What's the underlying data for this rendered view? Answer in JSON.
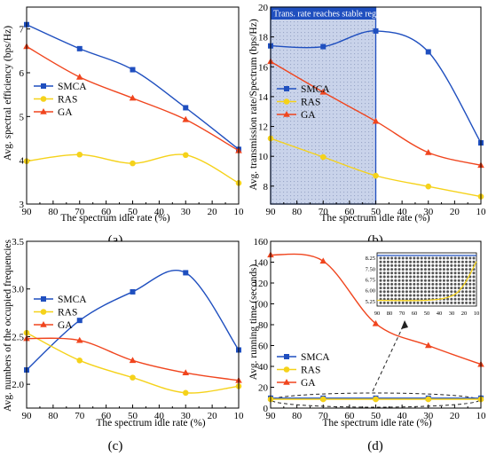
{
  "chart_data": [
    {
      "id": "a",
      "type": "line",
      "panel_label": "(a)",
      "xlabel": "The spectrum idle rate (%)",
      "ylabel": "Avg. spectral efficiency (bps/Hz)",
      "x": [
        90,
        70,
        50,
        30,
        10
      ],
      "xlim": [
        90,
        10
      ],
      "xticks": [
        90,
        80,
        70,
        60,
        50,
        40,
        30,
        20,
        10
      ],
      "ylim": [
        3,
        7.5
      ],
      "yticks": [
        3,
        4,
        5,
        6,
        7
      ],
      "legend_position": "right",
      "series": [
        {
          "name": "SMCA",
          "color": "#1f4fbf",
          "marker": "square",
          "values": [
            7.1,
            6.55,
            6.07,
            5.2,
            4.25
          ]
        },
        {
          "name": "RAS",
          "color": "#f5d21a",
          "marker": "circle",
          "values": [
            3.98,
            4.13,
            3.93,
            4.12,
            3.48
          ]
        },
        {
          "name": "GA",
          "color": "#f0451e",
          "marker": "triangle",
          "values": [
            6.6,
            5.9,
            5.42,
            4.93,
            4.22
          ]
        }
      ]
    },
    {
      "id": "b",
      "type": "line",
      "panel_label": "(b)",
      "xlabel": "The spectrum idle rate (%)",
      "ylabel": "Avg. transmission rate/Spectrum (bps/Hz)",
      "x": [
        90,
        70,
        50,
        30,
        10
      ],
      "xlim": [
        90,
        10
      ],
      "xticks": [
        90,
        80,
        70,
        60,
        50,
        40,
        30,
        20,
        10
      ],
      "ylim": [
        6.8,
        20
      ],
      "yticks": [
        8,
        10,
        12,
        14,
        16,
        18,
        20
      ],
      "legend_position": "center-left",
      "annotation": {
        "text": "Trans. rate reaches stable region",
        "x_from": 90,
        "x_to": 50
      },
      "series": [
        {
          "name": "SMCA",
          "color": "#1f4fbf",
          "marker": "square",
          "values": [
            17.4,
            17.35,
            18.4,
            17.0,
            10.9
          ]
        },
        {
          "name": "RAS",
          "color": "#f5d21a",
          "marker": "circle",
          "values": [
            11.2,
            9.95,
            8.7,
            7.98,
            7.3
          ]
        },
        {
          "name": "GA",
          "color": "#f0451e",
          "marker": "triangle",
          "values": [
            16.35,
            14.3,
            12.35,
            10.25,
            9.4
          ]
        }
      ]
    },
    {
      "id": "c",
      "type": "line",
      "panel_label": "(c)",
      "xlabel": "The spectrum idle rate (%)",
      "ylabel": "Avg. numbers of the occupied frequencies",
      "x": [
        90,
        70,
        50,
        30,
        10
      ],
      "xlim": [
        90,
        10
      ],
      "xticks": [
        90,
        80,
        70,
        60,
        50,
        40,
        30,
        20,
        10
      ],
      "ylim": [
        1.75,
        3.5
      ],
      "yticks": [
        2.0,
        2.5,
        3.0,
        3.5
      ],
      "ytick_labels": [
        "2.0",
        "2.5",
        "3.0",
        "3.5"
      ],
      "legend_position": "center-left",
      "series": [
        {
          "name": "SMCA",
          "color": "#1f4fbf",
          "marker": "square",
          "values": [
            2.15,
            2.67,
            2.97,
            3.17,
            2.36
          ]
        },
        {
          "name": "RAS",
          "color": "#f5d21a",
          "marker": "circle",
          "values": [
            2.54,
            2.25,
            2.07,
            1.91,
            1.98
          ]
        },
        {
          "name": "GA",
          "color": "#f0451e",
          "marker": "triangle",
          "values": [
            2.48,
            2.46,
            2.25,
            2.12,
            2.04
          ]
        }
      ]
    },
    {
      "id": "d",
      "type": "line",
      "panel_label": "(d)",
      "xlabel": "The spectrum idle rate (%)",
      "ylabel": "Avg. running time (seconds)",
      "x": [
        90,
        70,
        50,
        30,
        10
      ],
      "xlim": [
        90,
        10
      ],
      "xticks": [
        90,
        80,
        70,
        60,
        50,
        40,
        30,
        20,
        10
      ],
      "ylim": [
        0,
        160
      ],
      "yticks": [
        0,
        20,
        40,
        60,
        80,
        100,
        120,
        140,
        160
      ],
      "legend_position": "center-left",
      "series": [
        {
          "name": "SMCA",
          "color": "#1f4fbf",
          "marker": "square",
          "values": [
            9.5,
            9.5,
            9.5,
            9.5,
            9.5
          ]
        },
        {
          "name": "RAS",
          "color": "#f5d21a",
          "marker": "circle",
          "values": [
            8.5,
            8.5,
            8.5,
            8.5,
            8.5
          ]
        },
        {
          "name": "GA",
          "color": "#f0451e",
          "marker": "triangle",
          "values": [
            147,
            141,
            81,
            60,
            42
          ]
        }
      ],
      "inset": {
        "xticks": [
          90,
          80,
          70,
          60,
          50,
          40,
          30,
          20,
          10
        ],
        "yticks": [
          5.25,
          6.0,
          6.75,
          7.5,
          8.25
        ],
        "ytick_labels": [
          "5.25",
          "6.00",
          "6.75",
          "7.50",
          "8.25"
        ],
        "ylim": [
          4.9,
          8.6
        ]
      }
    }
  ]
}
